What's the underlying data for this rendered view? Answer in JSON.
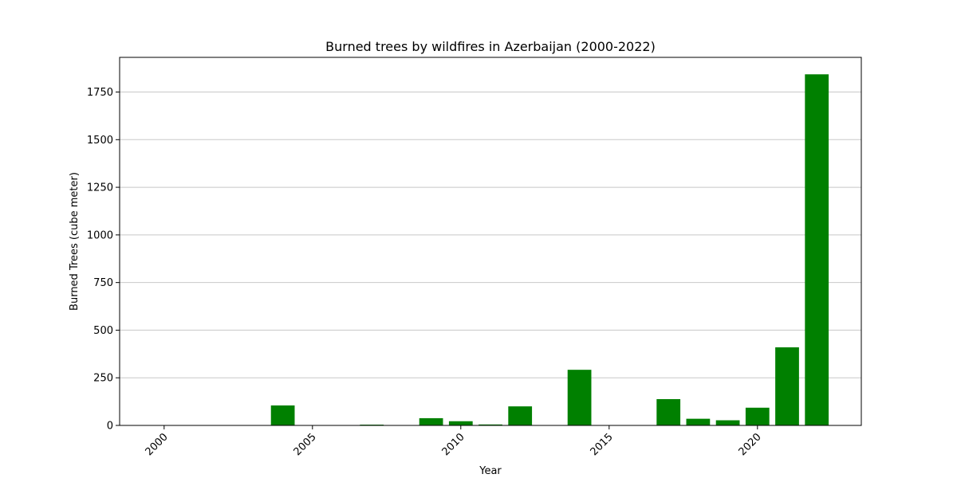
{
  "chart_data": {
    "type": "bar",
    "title": "Burned trees by wildfires in Azerbaijan (2000-2022)",
    "xlabel": "Year",
    "ylabel": "Burned Trees (cube meter)",
    "xlim": [
      1998.5,
      2023.5
    ],
    "ylim": [
      0,
      1932
    ],
    "xticks": [
      2000,
      2005,
      2010,
      2015,
      2020
    ],
    "yticks": [
      0,
      250,
      500,
      750,
      1000,
      1250,
      1500,
      1750
    ],
    "grid": "y",
    "bar_color": "#008000",
    "x": [
      2000,
      2001,
      2002,
      2003,
      2004,
      2005,
      2006,
      2007,
      2008,
      2009,
      2010,
      2011,
      2012,
      2013,
      2014,
      2015,
      2016,
      2017,
      2018,
      2019,
      2020,
      2021,
      2022
    ],
    "values": [
      0,
      0,
      0,
      0,
      105,
      0,
      0,
      4,
      0,
      38,
      22,
      5,
      100,
      0,
      292,
      0,
      0,
      138,
      35,
      27,
      93,
      410,
      1843
    ]
  }
}
